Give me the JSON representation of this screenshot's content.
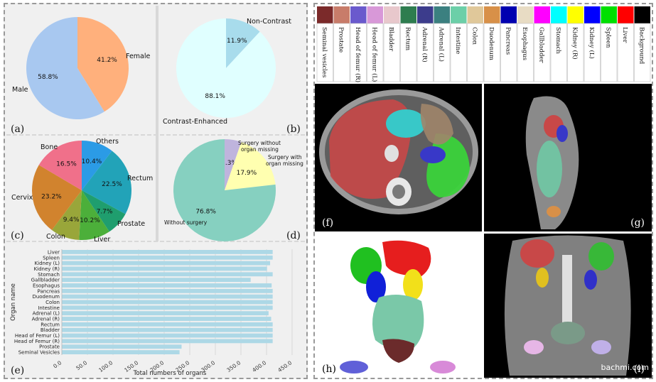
{
  "colors": {
    "panel_bg": "#f0f0f0",
    "bar": "#add8e6",
    "divider": "#d8d8d8"
  },
  "panel_letters": {
    "a": "(a)",
    "b": "(b)",
    "c": "(c)",
    "d": "(d)",
    "e": "(e)",
    "f": "(f)",
    "g": "(g)",
    "h": "(h)",
    "i": "(i)"
  },
  "watermark": "bachmi.com",
  "chart_data": [
    {
      "type": "pie",
      "panel": "a",
      "labels": [
        "Female",
        "Male"
      ],
      "values": [
        41.2,
        58.8
      ],
      "value_labels": [
        "41.2%",
        "58.8%"
      ],
      "colors": [
        "#ffb07c",
        "#a8c8f0"
      ]
    },
    {
      "type": "pie",
      "panel": "b",
      "labels": [
        "Non-Contrast",
        "Contrast-Enhanced"
      ],
      "values": [
        11.9,
        88.1
      ],
      "value_labels": [
        "11.9%",
        "88.1%"
      ],
      "colors": [
        "#a8dcec",
        "#e0ffff"
      ]
    },
    {
      "type": "pie",
      "panel": "c",
      "labels": [
        "Others",
        "Rectum",
        "Prostate",
        "Liver",
        "Colon",
        "Cervix",
        "Bone"
      ],
      "values": [
        10.4,
        22.5,
        7.7,
        10.2,
        9.4,
        23.2,
        16.5
      ],
      "value_labels": [
        "10.4%",
        "22.5%",
        "7.7%",
        "10.2%",
        "9.4%",
        "23.2%",
        "16.5%"
      ],
      "colors": [
        "#2b9be6",
        "#22a3b8",
        "#1f9e6e",
        "#4caf3a",
        "#99a63a",
        "#d1832e",
        "#f0708a"
      ]
    },
    {
      "type": "pie",
      "panel": "d",
      "labels": [
        "Surgery without organ missing",
        "Surgery with organ missing",
        "Without surgery"
      ],
      "values": [
        5.3,
        17.9,
        76.8
      ],
      "value_labels": [
        "5.3%",
        "17.9%",
        "76.8%"
      ],
      "colors": [
        "#bfb4dd",
        "#ffffb0",
        "#86d0c0"
      ]
    },
    {
      "type": "bar",
      "panel": "e",
      "orientation": "horizontal",
      "categories": [
        "Liver",
        "Spleen",
        "Kidney (L)",
        "Kidney (R)",
        "Stomach",
        "Gallbladder",
        "Esophagus",
        "Pancreas",
        "Duodenum",
        "Colon",
        "Intestine",
        "Adrenal (L)",
        "Adrenal (R)",
        "Rectum",
        "Bladder",
        "Head of Femur (L)",
        "Head of Femur (R)",
        "Prostate",
        "Seminal Vesicles"
      ],
      "values": [
        412,
        412,
        407,
        401,
        412,
        369,
        410,
        412,
        412,
        412,
        412,
        404,
        409,
        412,
        412,
        412,
        412,
        234,
        230
      ],
      "xlabel": "Total numbers of organs",
      "ylabel": "Organ name",
      "xlim": [
        0,
        450
      ],
      "xticks": [
        "0.0",
        "50.0",
        "100.0",
        "150.0",
        "200.0",
        "250.0",
        "300.0",
        "350.0",
        "400.0",
        "450.0"
      ],
      "grid": true
    }
  ],
  "legend": {
    "items": [
      {
        "label": "Seminal vesicles",
        "color": "#7b2a2a"
      },
      {
        "label": "Prostate",
        "color": "#c87c6a"
      },
      {
        "label": "Head of femur (R)",
        "color": "#6a5acd"
      },
      {
        "label": "Head of femur (L)",
        "color": "#d898d8"
      },
      {
        "label": "Bladder",
        "color": "#e8c8cc"
      },
      {
        "label": "Rectum",
        "color": "#2e7d4f"
      },
      {
        "label": "Adrenal (R)",
        "color": "#3c3c8c"
      },
      {
        "label": "Adrenal (L)",
        "color": "#3b8080"
      },
      {
        "label": "Intestine",
        "color": "#6ccfa8"
      },
      {
        "label": "Colon",
        "color": "#e0c89a"
      },
      {
        "label": "Duodenum",
        "color": "#d89048"
      },
      {
        "label": "Pancreas",
        "color": "#0000b0"
      },
      {
        "label": "Esophagus",
        "color": "#e8dcc4"
      },
      {
        "label": "Gallbladder",
        "color": "#ff00ff"
      },
      {
        "label": "Stomach",
        "color": "#00ffff"
      },
      {
        "label": "Kidney (R)",
        "color": "#ffff00"
      },
      {
        "label": "Kidney (L)",
        "color": "#0000ff"
      },
      {
        "label": "Spleen",
        "color": "#00e000"
      },
      {
        "label": "Liver",
        "color": "#ff0000"
      },
      {
        "label": "Background",
        "color": "#000000"
      }
    ]
  }
}
